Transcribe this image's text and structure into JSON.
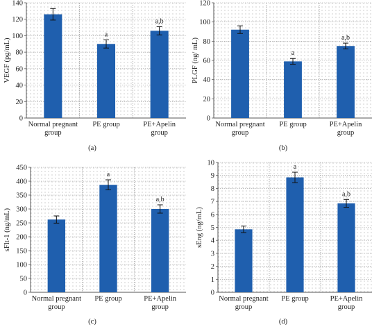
{
  "chart_data": [
    {
      "type": "bar",
      "panel_label": "(a)",
      "ylabel": "VEGF (pg/mL)",
      "ylim": [
        0,
        140
      ],
      "yticks": [
        0,
        20,
        40,
        60,
        80,
        100,
        120,
        140
      ],
      "categories": [
        [
          "Normal pregnant",
          "group"
        ],
        [
          "PE group"
        ],
        [
          "PE+Apelin",
          "group"
        ]
      ],
      "values": [
        126,
        90,
        106
      ],
      "errors": [
        7,
        5,
        5
      ],
      "annotations": [
        "",
        "a",
        "a,b"
      ],
      "grid": "dotted",
      "bar_color": "#1f5fae"
    },
    {
      "type": "bar",
      "panel_label": "(b)",
      "ylabel": "PLGF (ng/ mL)",
      "ylim": [
        0,
        120
      ],
      "yticks": [
        0,
        20,
        40,
        60,
        80,
        100,
        120
      ],
      "categories": [
        [
          "Normal pregnant",
          "group"
        ],
        [
          "PE group"
        ],
        [
          "PE+Apelin",
          "group"
        ]
      ],
      "values": [
        92,
        59,
        75
      ],
      "errors": [
        4,
        3,
        3
      ],
      "annotations": [
        "",
        "a",
        "a,b"
      ],
      "grid": "dotted",
      "bar_color": "#1f5fae"
    },
    {
      "type": "bar",
      "panel_label": "(c)",
      "ylabel": "sFlt-1 (ng/mL)",
      "ylim": [
        0,
        450
      ],
      "yticks": [
        0,
        50,
        100,
        150,
        200,
        250,
        300,
        350,
        400,
        450
      ],
      "categories": [
        [
          "Normal pregnant",
          "group"
        ],
        [
          "PE group"
        ],
        [
          "PE+Apelin",
          "group"
        ]
      ],
      "values": [
        262,
        387,
        300
      ],
      "errors": [
        13,
        18,
        15
      ],
      "annotations": [
        "",
        "a",
        "a,b"
      ],
      "grid": "dotted",
      "bar_color": "#1f5fae"
    },
    {
      "type": "bar",
      "panel_label": "(d)",
      "ylabel": "sEng (ng/mL)",
      "ylim": [
        0,
        10
      ],
      "yticks": [
        0,
        1,
        2,
        3,
        4,
        5,
        6,
        7,
        8,
        9,
        10
      ],
      "categories": [
        [
          "Normal pregnant",
          "group"
        ],
        [
          "PE group"
        ],
        [
          "PE+Apelin",
          "group"
        ]
      ],
      "values": [
        4.85,
        8.85,
        6.85
      ],
      "errors": [
        0.25,
        0.4,
        0.3
      ],
      "annotations": [
        "",
        "a",
        "a,b"
      ],
      "grid": "dotted",
      "bar_color": "#1f5fae"
    }
  ]
}
